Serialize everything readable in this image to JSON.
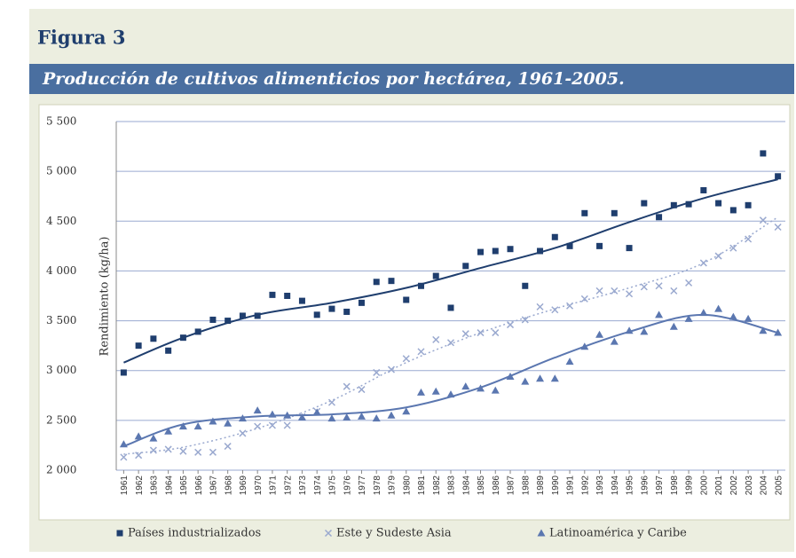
{
  "chart_data": {
    "type": "scatter",
    "figure_label": "Figura 3",
    "title": "Producción de cultivos alimenticios por hectárea, 1961-2005.",
    "y_label": "Rendimiento (kg/ha)",
    "x": [
      1961,
      1962,
      1963,
      1964,
      1965,
      1966,
      1967,
      1968,
      1969,
      1970,
      1971,
      1972,
      1973,
      1974,
      1975,
      1976,
      1977,
      1978,
      1979,
      1980,
      1981,
      1982,
      1983,
      1984,
      1985,
      1986,
      1987,
      1988,
      1989,
      1990,
      1991,
      1992,
      1993,
      1994,
      1995,
      1996,
      1997,
      1998,
      1999,
      2000,
      2001,
      2002,
      2003,
      2004,
      2005
    ],
    "xlim": [
      1960.5,
      2005.5
    ],
    "ylim": [
      2000,
      5500
    ],
    "yticks": [
      {
        "value": 2000,
        "label": "2 000"
      },
      {
        "value": 2500,
        "label": "2 500"
      },
      {
        "value": 3000,
        "label": "3 000"
      },
      {
        "value": 3500,
        "label": "3 500"
      },
      {
        "value": 4000,
        "label": "4 000"
      },
      {
        "value": 4500,
        "label": "4 500"
      },
      {
        "value": 5000,
        "label": "5 000"
      },
      {
        "value": 5500,
        "label": "5 500"
      }
    ],
    "grid": true,
    "trend_x": [
      1961,
      1965,
      1970,
      1975,
      1980,
      1985,
      1990,
      1995,
      2000,
      2005
    ],
    "series": [
      {
        "name": "Países industrializados",
        "color": "#1f3e6e",
        "marker": "square",
        "trend_style": "solid",
        "values": [
          2980,
          3250,
          3320,
          3200,
          3330,
          3390,
          3510,
          3500,
          3550,
          3550,
          3760,
          3750,
          3700,
          3560,
          3620,
          3590,
          3680,
          3890,
          3900,
          3710,
          3850,
          3950,
          3630,
          4050,
          4190,
          4200,
          4220,
          3850,
          4200,
          4340,
          4250,
          4580,
          4250,
          4580,
          4230,
          4680,
          4540,
          4660,
          4670,
          4810,
          4680,
          4610,
          4660,
          5180,
          4950
        ],
        "trend": [
          3080,
          3330,
          3560,
          3680,
          3830,
          4030,
          4230,
          4490,
          4730,
          4920
        ]
      },
      {
        "name": "Este y Sudeste Asia",
        "color": "#9aa9cf",
        "marker": "cross",
        "trend_style": "dotted",
        "values": [
          2130,
          2150,
          2200,
          2210,
          2190,
          2180,
          2180,
          2240,
          2370,
          2440,
          2450,
          2450,
          2540,
          2590,
          2680,
          2840,
          2810,
          2980,
          3010,
          3120,
          3190,
          3310,
          3280,
          3370,
          3380,
          3380,
          3460,
          3510,
          3640,
          3610,
          3650,
          3720,
          3800,
          3800,
          3770,
          3840,
          3850,
          3800,
          3880,
          4080,
          4150,
          4230,
          4320,
          4510,
          4440
        ],
        "trend": [
          2160,
          2230,
          2420,
          2700,
          3080,
          3380,
          3620,
          3830,
          4080,
          4540
        ]
      },
      {
        "name": "Latinoamérica y Caribe",
        "color": "#5b77b0",
        "marker": "triangle",
        "trend_style": "solid",
        "values": [
          2260,
          2340,
          2320,
          2390,
          2440,
          2440,
          2490,
          2470,
          2520,
          2600,
          2560,
          2550,
          2530,
          2580,
          2520,
          2530,
          2540,
          2520,
          2550,
          2590,
          2780,
          2790,
          2760,
          2840,
          2820,
          2800,
          2940,
          2890,
          2920,
          2920,
          3090,
          3240,
          3360,
          3290,
          3400,
          3390,
          3560,
          3440,
          3520,
          3580,
          3620,
          3540,
          3520,
          3400,
          3380
        ],
        "trend": [
          2240,
          2460,
          2540,
          2560,
          2630,
          2830,
          3130,
          3390,
          3560,
          3380
        ]
      }
    ]
  }
}
